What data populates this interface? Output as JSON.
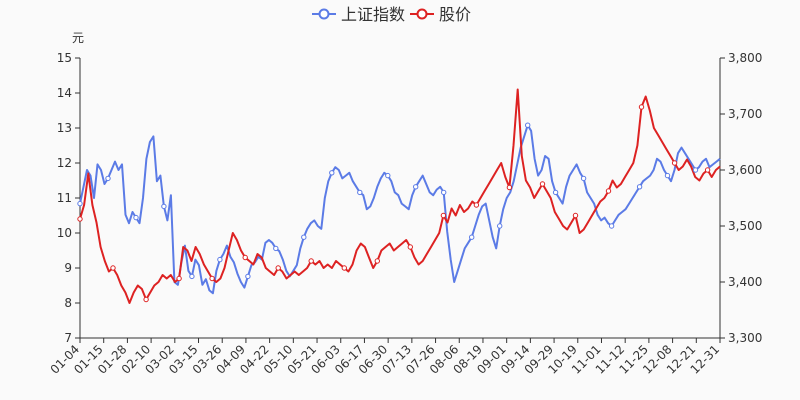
{
  "chart_data": {
    "type": "line",
    "y_left": {
      "label": "元",
      "ticks": [
        7,
        8,
        9,
        10,
        11,
        12,
        13,
        14,
        15
      ],
      "range": [
        7,
        15
      ]
    },
    "y_right": {
      "ticks": [
        "3,300",
        "3,400",
        "3,500",
        "3,600",
        "3,700",
        "3,800"
      ],
      "range": [
        3300,
        3800
      ]
    },
    "x_tick_labels": [
      "01-04",
      "01-15",
      "01-28",
      "02-10",
      "03-02",
      "03-15",
      "03-26",
      "04-09",
      "04-22",
      "05-10",
      "05-21",
      "06-03",
      "06-17",
      "06-30",
      "07-13",
      "07-26",
      "08-06",
      "08-19",
      "09-01",
      "09-14",
      "09-29",
      "10-19",
      "11-01",
      "11-12",
      "11-25",
      "12-08",
      "12-21",
      "12-31"
    ],
    "legend": [
      {
        "name": "上证指数",
        "color": "#5b7be6"
      },
      {
        "name": "股价",
        "color": "#dd2222"
      }
    ],
    "series": [
      {
        "name": "上证指数",
        "axis": "right",
        "color": "#5b7be6",
        "values": [
          3540,
          3570,
          3600,
          3590,
          3550,
          3610,
          3600,
          3575,
          3585,
          3600,
          3615,
          3600,
          3610,
          3520,
          3505,
          3525,
          3515,
          3505,
          3550,
          3620,
          3650,
          3660,
          3580,
          3590,
          3535,
          3510,
          3555,
          3400,
          3395,
          3435,
          3465,
          3420,
          3410,
          3440,
          3430,
          3395,
          3405,
          3385,
          3380,
          3420,
          3440,
          3450,
          3465,
          3445,
          3435,
          3415,
          3400,
          3390,
          3410,
          3430,
          3435,
          3445,
          3440,
          3470,
          3475,
          3470,
          3460,
          3455,
          3440,
          3420,
          3410,
          3420,
          3430,
          3460,
          3480,
          3495,
          3505,
          3510,
          3500,
          3495,
          3550,
          3580,
          3595,
          3605,
          3600,
          3585,
          3590,
          3595,
          3580,
          3570,
          3560,
          3555,
          3530,
          3535,
          3550,
          3570,
          3585,
          3595,
          3590,
          3580,
          3560,
          3555,
          3540,
          3535,
          3530,
          3555,
          3570,
          3580,
          3590,
          3575,
          3560,
          3555,
          3565,
          3570,
          3560,
          3490,
          3440,
          3400,
          3420,
          3440,
          3460,
          3470,
          3480,
          3500,
          3520,
          3535,
          3540,
          3510,
          3480,
          3460,
          3500,
          3530,
          3550,
          3560,
          3580,
          3610,
          3640,
          3660,
          3680,
          3670,
          3620,
          3590,
          3600,
          3625,
          3620,
          3580,
          3560,
          3550,
          3540,
          3570,
          3590,
          3600,
          3610,
          3595,
          3585,
          3560,
          3550,
          3540,
          3520,
          3510,
          3515,
          3505,
          3500,
          3510,
          3520,
          3525,
          3530,
          3540,
          3550,
          3560,
          3570,
          3580,
          3585,
          3590,
          3600,
          3620,
          3615,
          3600,
          3590,
          3580,
          3600,
          3630,
          3640,
          3630,
          3620,
          3610,
          3600,
          3605,
          3615,
          3620,
          3605,
          3610,
          3615,
          3620
        ]
      },
      {
        "name": "股价",
        "axis": "left",
        "color": "#dd2222",
        "values": [
          10.4,
          10.8,
          11.7,
          10.8,
          10.3,
          9.6,
          9.2,
          8.9,
          9.0,
          8.8,
          8.5,
          8.3,
          8.0,
          8.3,
          8.5,
          8.4,
          8.1,
          8.3,
          8.5,
          8.6,
          8.8,
          8.7,
          8.8,
          8.6,
          8.7,
          9.6,
          9.5,
          9.2,
          9.6,
          9.4,
          9.1,
          8.9,
          8.7,
          8.6,
          8.7,
          9.0,
          9.5,
          10.0,
          9.8,
          9.5,
          9.3,
          9.2,
          9.1,
          9.4,
          9.3,
          9.0,
          8.9,
          8.8,
          9.0,
          8.9,
          8.7,
          8.8,
          8.9,
          8.8,
          8.9,
          9.0,
          9.2,
          9.1,
          9.2,
          9.0,
          9.1,
          9.0,
          9.2,
          9.1,
          9.0,
          8.9,
          9.1,
          9.5,
          9.7,
          9.6,
          9.3,
          9.0,
          9.2,
          9.5,
          9.6,
          9.7,
          9.5,
          9.6,
          9.7,
          9.8,
          9.6,
          9.3,
          9.1,
          9.2,
          9.4,
          9.6,
          9.8,
          10.0,
          10.5,
          10.3,
          10.7,
          10.5,
          10.8,
          10.6,
          10.7,
          10.9,
          10.8,
          11.0,
          11.2,
          11.4,
          11.6,
          11.8,
          12.0,
          11.6,
          11.3,
          12.5,
          14.1,
          12.2,
          11.5,
          11.3,
          11.0,
          11.2,
          11.4,
          11.2,
          11.0,
          10.6,
          10.4,
          10.2,
          10.1,
          10.3,
          10.5,
          10.0,
          10.1,
          10.3,
          10.5,
          10.7,
          10.9,
          11.0,
          11.2,
          11.5,
          11.3,
          11.4,
          11.6,
          11.8,
          12.0,
          12.5,
          13.6,
          13.9,
          13.5,
          13.0,
          12.8,
          12.6,
          12.4,
          12.2,
          12.0,
          11.8,
          11.9,
          12.1,
          11.9,
          11.6,
          11.5,
          11.7,
          11.8,
          11.6,
          11.8,
          11.9
        ]
      }
    ]
  }
}
